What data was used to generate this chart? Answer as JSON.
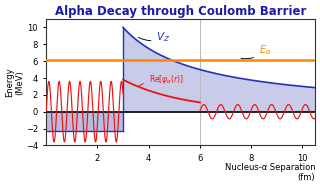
{
  "title": "Alpha Decay through Coulomb Barrier",
  "title_color": "#1a1aaa",
  "bg_color": "#ffffff",
  "plot_bg_color": "#ffffff",
  "ylabel": "Energy\n(MeV)",
  "xlabel": "Nucleus-α Separation\n(fm)",
  "xlim": [
    0,
    10.5
  ],
  "ylim": [
    -4,
    11
  ],
  "yticks": [
    -4,
    -2,
    0,
    2,
    4,
    6,
    8,
    10
  ],
  "xticks": [
    2,
    4,
    6,
    8,
    10
  ],
  "E_alpha": 6.1,
  "r_nuclear": 3.0,
  "r_barrier": 6.0,
  "V_peak": 10.0,
  "barrier_fill_color": "#c8cce8",
  "barrier_edge_color": "#2233bb",
  "nuclear_fill_color": "#b8bde0",
  "nuclear_bottom": -2.3,
  "wavefunction_color": "#ee1111",
  "energy_line_color": "#ff8800",
  "zero_line_color": "#000000",
  "vertical_line_color": "#bbbbbb",
  "annotation_color": "#111111",
  "vz_label_color": "#2233bb",
  "ea_label_color": "#ff8800",
  "psi_label_color": "#ee1111"
}
